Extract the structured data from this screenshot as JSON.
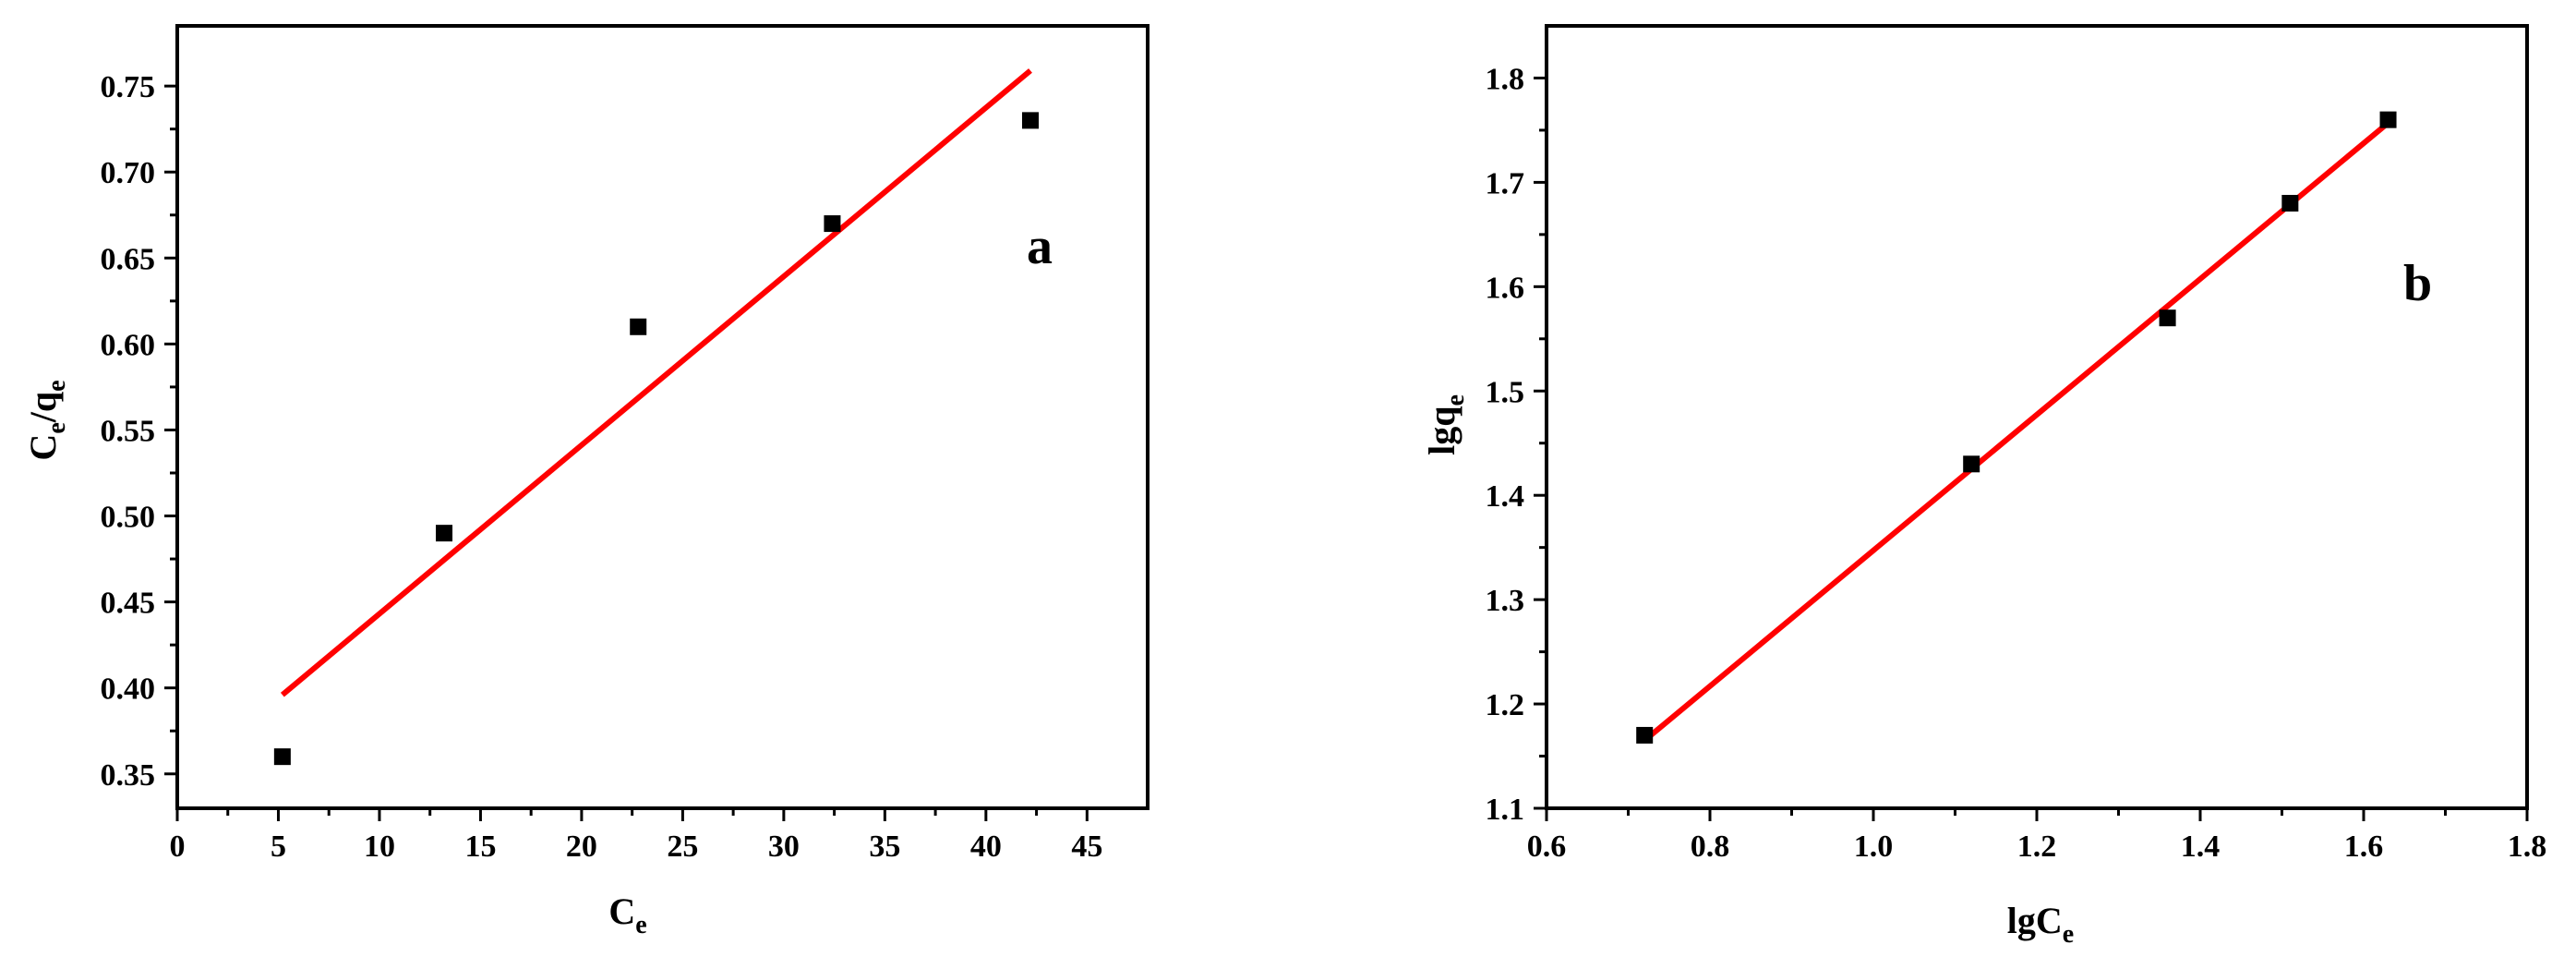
{
  "chart_data": [
    {
      "type": "scatter",
      "panel_label": "a",
      "xlabel_main": "C",
      "xlabel_sub": "e",
      "ylabel_parts": [
        "C",
        "e",
        "/q",
        "e"
      ],
      "xlim": [
        0,
        48
      ],
      "ylim": [
        0.33,
        0.785
      ],
      "xticks": [
        0,
        5,
        10,
        15,
        20,
        25,
        30,
        35,
        40,
        45
      ],
      "xtick_labels": [
        "0",
        "5",
        "10",
        "15",
        "20",
        "25",
        "30",
        "35",
        "40",
        "45"
      ],
      "yticks": [
        0.35,
        0.4,
        0.45,
        0.5,
        0.55,
        0.6,
        0.65,
        0.7,
        0.75
      ],
      "ytick_labels": [
        "0.35",
        "0.40",
        "0.45",
        "0.50",
        "0.55",
        "0.60",
        "0.65",
        "0.70",
        "0.75"
      ],
      "x": [
        5.2,
        13.2,
        22.8,
        32.4,
        42.2
      ],
      "y": [
        0.36,
        0.49,
        0.61,
        0.67,
        0.73
      ],
      "fit_line": {
        "x": [
          5.2,
          42.2
        ],
        "y": [
          0.396,
          0.759
        ],
        "color": "#ff0000"
      },
      "marker_color": "#000000",
      "grid": false
    },
    {
      "type": "scatter",
      "panel_label": "b",
      "xlabel_main": "lgC",
      "xlabel_sub": "e",
      "ylabel_main": "lgq",
      "ylabel_sub": "e",
      "xlim": [
        0.6,
        1.8
      ],
      "ylim": [
        1.1,
        1.85
      ],
      "xticks": [
        0.6,
        0.8,
        1.0,
        1.2,
        1.4,
        1.6,
        1.8
      ],
      "xtick_labels": [
        "0.6",
        "0.8",
        "1.0",
        "1.2",
        "1.4",
        "1.6",
        "1.8"
      ],
      "yticks": [
        1.1,
        1.2,
        1.3,
        1.4,
        1.5,
        1.6,
        1.7,
        1.8
      ],
      "ytick_labels": [
        "1.1",
        "1.2",
        "1.3",
        "1.4",
        "1.5",
        "1.6",
        "1.7",
        "1.8"
      ],
      "x": [
        0.72,
        1.12,
        1.36,
        1.51,
        1.63
      ],
      "y": [
        1.17,
        1.43,
        1.57,
        1.68,
        1.76
      ],
      "fit_line": {
        "x": [
          0.72,
          1.63
        ],
        "y": [
          1.165,
          1.757
        ],
        "color": "#ff0000"
      },
      "marker_color": "#000000",
      "grid": false
    }
  ]
}
